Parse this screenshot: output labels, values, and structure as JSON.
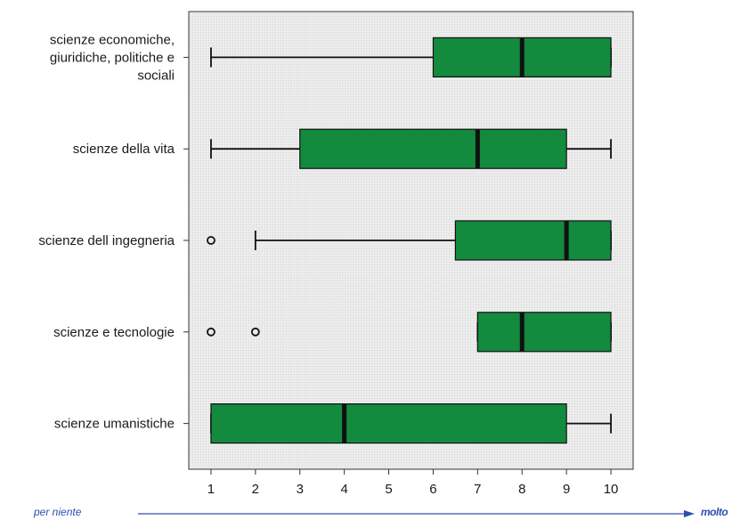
{
  "chart_data": {
    "type": "boxplot",
    "orientation": "horizontal",
    "xlim": [
      0.5,
      10.5
    ],
    "x_ticks": [
      "1",
      "2",
      "3",
      "4",
      "5",
      "6",
      "7",
      "8",
      "9",
      "10"
    ],
    "grid": false,
    "colors": {
      "box": "#138a3e",
      "plot_background": "#eeeeee",
      "line": "#111111"
    },
    "categories": [
      {
        "label": [
          "scienze economiche,",
          "giuridiche, politiche e",
          "sociali"
        ],
        "whisker_low": 1,
        "q1": 6,
        "median": 8,
        "q3": 10,
        "whisker_high": 10,
        "outliers": []
      },
      {
        "label": [
          "scienze della vita"
        ],
        "whisker_low": 1,
        "q1": 3,
        "median": 7,
        "q3": 9,
        "whisker_high": 10,
        "outliers": []
      },
      {
        "label": [
          "scienze dell ingegneria"
        ],
        "whisker_low": 2,
        "q1": 6.5,
        "median": 9,
        "q3": 10,
        "whisker_high": 10,
        "outliers": [
          1
        ]
      },
      {
        "label": [
          "scienze e tecnologie"
        ],
        "whisker_low": 7,
        "q1": 7,
        "median": 8,
        "q3": 10,
        "whisker_high": 10,
        "outliers": [
          1,
          2
        ]
      },
      {
        "label": [
          "scienze umanistiche"
        ],
        "whisker_low": 1,
        "q1": 1,
        "median": 4,
        "q3": 9,
        "whisker_high": 10,
        "outliers": []
      }
    ]
  },
  "scale": {
    "low_label": "per niente",
    "high_label": "molto",
    "arrow_color": "#2e4fb0"
  }
}
